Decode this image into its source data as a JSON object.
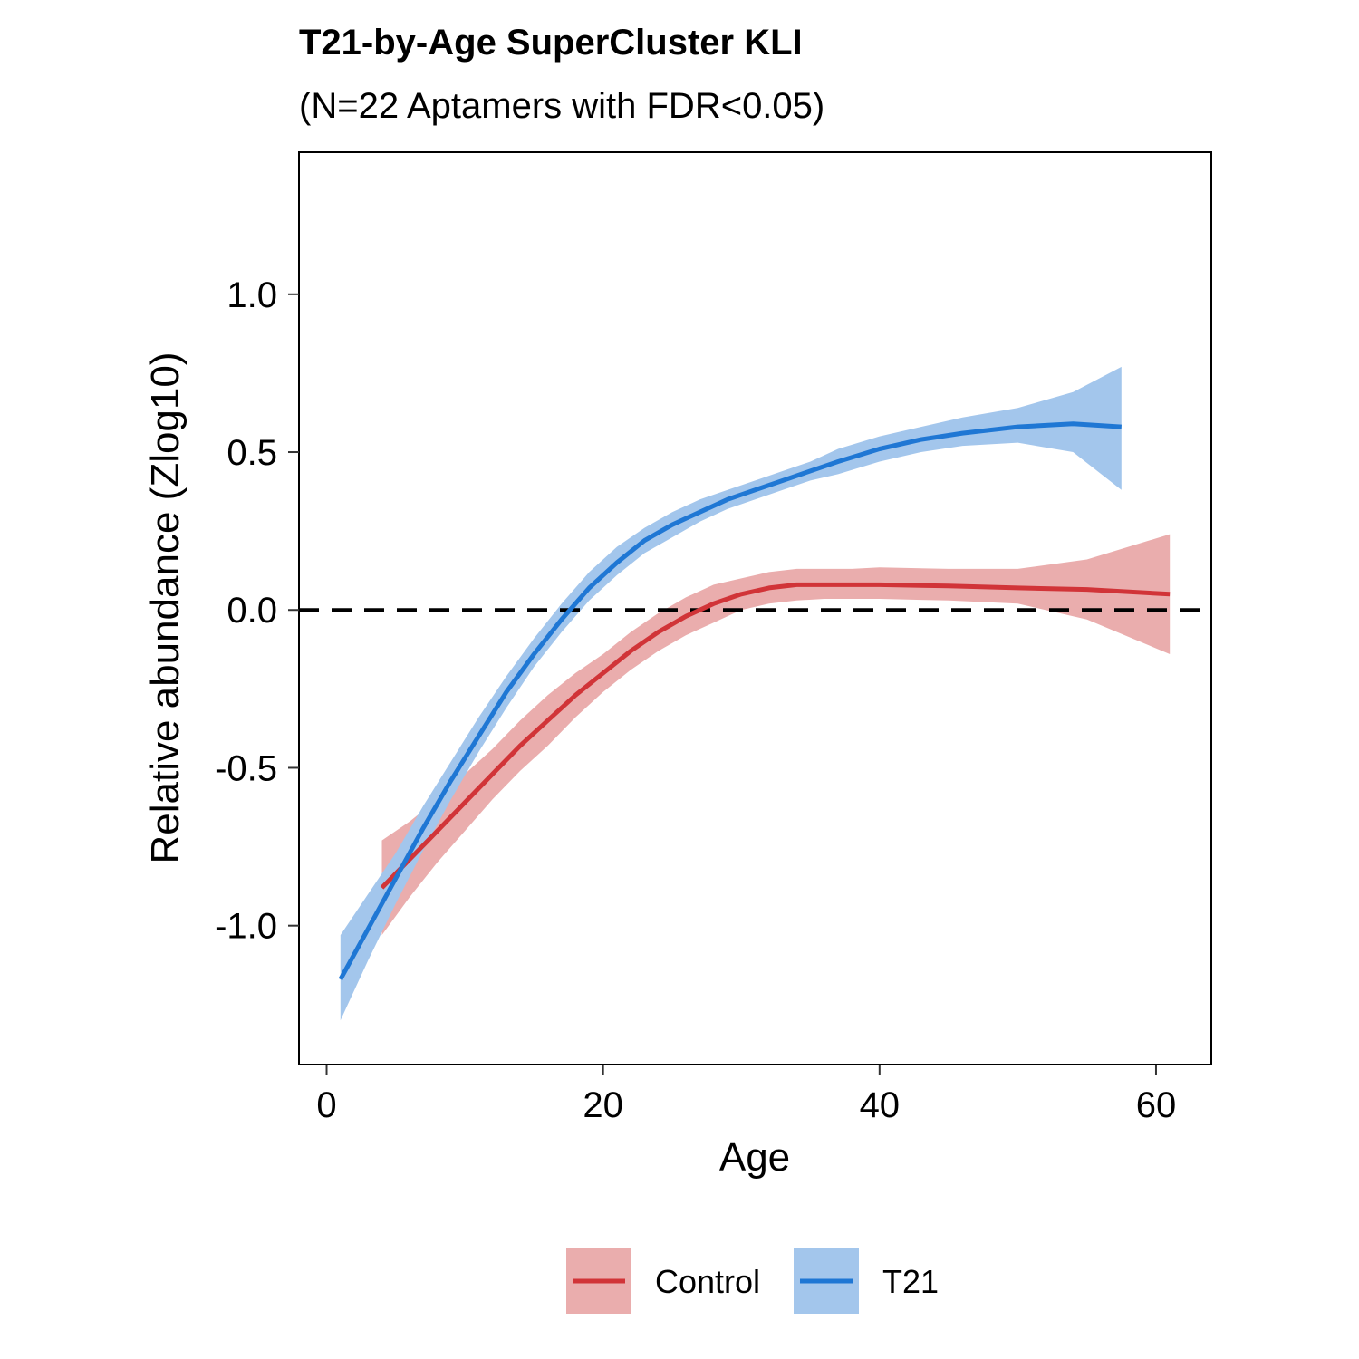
{
  "chart_data": {
    "type": "line",
    "title": "T21-by-Age SuperCluster KLI",
    "subtitle": "(N=22 Aptamers with FDR<0.05)",
    "xlabel": "Age",
    "ylabel": "Relative abundance (Zlog10)",
    "xlim": [
      -2,
      64
    ],
    "ylim": [
      -1.44,
      1.45
    ],
    "xticks": [
      0,
      20,
      40,
      60
    ],
    "yticks": [
      -1.0,
      -0.5,
      0.0,
      0.5,
      1.0
    ],
    "xtick_labels": [
      "0",
      "20",
      "40",
      "60"
    ],
    "ytick_labels": [
      "-1.0",
      "-0.5",
      "0.0",
      "0.5",
      "1.0"
    ],
    "reference_line": {
      "y": 0.0,
      "style": "dashed",
      "color": "#000000"
    },
    "grid": false,
    "legend": {
      "position": "bottom"
    },
    "series": [
      {
        "name": "Control",
        "color": "#d13438",
        "band_color": "#eaadad",
        "x": [
          4,
          6,
          8,
          10,
          12,
          14,
          16,
          18,
          20,
          22,
          24,
          26,
          28,
          30,
          32,
          34,
          36,
          38,
          40,
          45,
          50,
          55,
          61
        ],
        "y": [
          -0.88,
          -0.79,
          -0.7,
          -0.61,
          -0.52,
          -0.43,
          -0.35,
          -0.27,
          -0.2,
          -0.13,
          -0.07,
          -0.02,
          0.02,
          0.05,
          0.07,
          0.08,
          0.08,
          0.08,
          0.08,
          0.076,
          0.07,
          0.065,
          0.05
        ],
        "lower": [
          -1.03,
          -0.91,
          -0.8,
          -0.7,
          -0.6,
          -0.51,
          -0.43,
          -0.34,
          -0.26,
          -0.19,
          -0.13,
          -0.08,
          -0.04,
          0.0,
          0.02,
          0.03,
          0.035,
          0.035,
          0.035,
          0.03,
          0.02,
          -0.03,
          -0.14
        ],
        "upper": [
          -0.73,
          -0.67,
          -0.6,
          -0.52,
          -0.44,
          -0.35,
          -0.27,
          -0.2,
          -0.14,
          -0.07,
          -0.01,
          0.04,
          0.08,
          0.1,
          0.12,
          0.13,
          0.13,
          0.13,
          0.135,
          0.13,
          0.13,
          0.16,
          0.24
        ]
      },
      {
        "name": "T21",
        "color": "#1f77d4",
        "band_color": "#a3c6ec",
        "x": [
          1,
          3,
          5,
          7,
          9,
          11,
          13,
          15,
          17,
          19,
          21,
          23,
          25,
          27,
          29,
          31,
          33,
          35,
          37,
          40,
          43,
          46,
          50,
          54,
          57.5
        ],
        "y": [
          -1.17,
          -1.01,
          -0.85,
          -0.69,
          -0.54,
          -0.4,
          -0.26,
          -0.14,
          -0.03,
          0.07,
          0.15,
          0.22,
          0.27,
          0.31,
          0.35,
          0.38,
          0.41,
          0.44,
          0.47,
          0.51,
          0.54,
          0.56,
          0.58,
          0.59,
          0.58
        ],
        "lower": [
          -1.3,
          -1.11,
          -0.93,
          -0.76,
          -0.6,
          -0.45,
          -0.31,
          -0.18,
          -0.07,
          0.03,
          0.11,
          0.18,
          0.23,
          0.28,
          0.32,
          0.35,
          0.38,
          0.41,
          0.43,
          0.47,
          0.5,
          0.52,
          0.53,
          0.5,
          0.38
        ],
        "upper": [
          -1.03,
          -0.9,
          -0.77,
          -0.62,
          -0.48,
          -0.34,
          -0.21,
          -0.09,
          0.02,
          0.12,
          0.2,
          0.26,
          0.31,
          0.35,
          0.38,
          0.41,
          0.44,
          0.47,
          0.51,
          0.55,
          0.58,
          0.61,
          0.64,
          0.69,
          0.77
        ]
      }
    ]
  }
}
